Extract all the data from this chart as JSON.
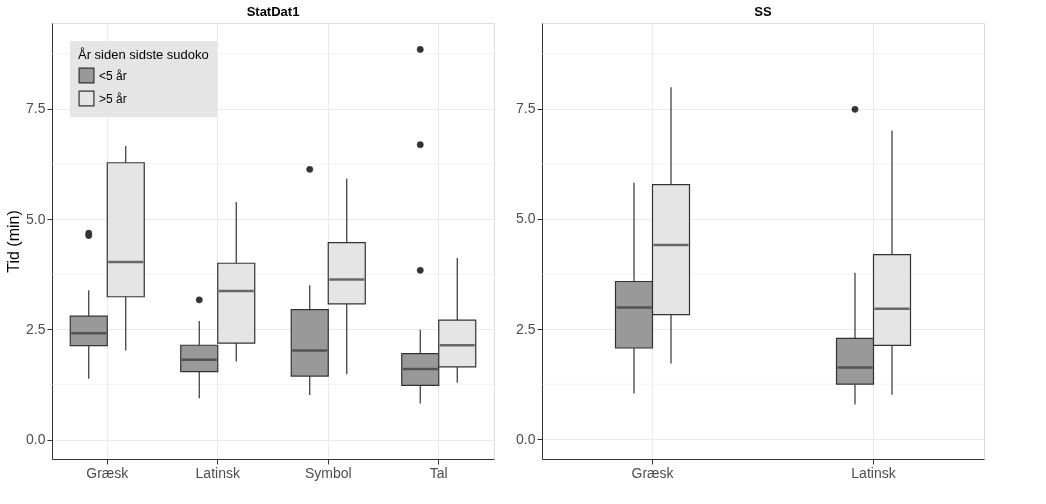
{
  "chart_data": [
    {
      "type": "box",
      "title": "StatDat1",
      "ylabel": "Tid (min)",
      "legend_title": "År siden sidste sudoko",
      "legend": "top left",
      "grid": true,
      "categories": [
        "Græsk",
        "Latinsk",
        "Symbol",
        "Tal"
      ],
      "ylim": [
        -0.44,
        9.45
      ],
      "yticks": [
        {
          "value": 0,
          "label": "0.0"
        },
        {
          "value": 2.5,
          "label": "2.5"
        },
        {
          "value": 5,
          "label": "5.0"
        },
        {
          "value": 7.5,
          "label": "7.5"
        }
      ],
      "series": [
        {
          "name": "<5 år",
          "color": "#999999",
          "boxes": [
            {
              "low": 1.38,
              "q1": 2.13,
              "median": 2.41,
              "q3": 2.8,
              "high": 3.39,
              "outliers": [
                4.63,
                4.68
              ]
            },
            {
              "low": 0.94,
              "q1": 1.54,
              "median": 1.81,
              "q3": 2.14,
              "high": 2.69,
              "outliers": [
                3.17
              ]
            },
            {
              "low": 1.01,
              "q1": 1.44,
              "median": 2.02,
              "q3": 2.95,
              "high": 3.5,
              "outliers": [
                6.13
              ]
            },
            {
              "low": 0.82,
              "q1": 1.23,
              "median": 1.6,
              "q3": 1.95,
              "high": 2.49,
              "outliers": [
                3.84,
                6.69,
                8.85
              ]
            }
          ]
        },
        {
          "name": ">5 år",
          "color": "#e5e5e5",
          "boxes": [
            {
              "low": 2.02,
              "q1": 3.24,
              "median": 4.03,
              "q3": 6.28,
              "high": 6.66
            },
            {
              "low": 1.77,
              "q1": 2.19,
              "median": 3.37,
              "q3": 4.0,
              "high": 5.39
            },
            {
              "low": 1.48,
              "q1": 3.08,
              "median": 3.63,
              "q3": 4.47,
              "high": 5.92
            },
            {
              "low": 1.29,
              "q1": 1.65,
              "median": 2.14,
              "q3": 2.71,
              "high": 4.12
            }
          ]
        }
      ]
    },
    {
      "type": "box",
      "title": "SS",
      "grid": true,
      "categories": [
        "Græsk",
        "Latinsk"
      ],
      "ylim": [
        -0.45,
        9.45
      ],
      "yticks": [
        {
          "value": 0,
          "label": "0.0"
        },
        {
          "value": 2.5,
          "label": "2.5"
        },
        {
          "value": 5,
          "label": "5.0"
        },
        {
          "value": 7.5,
          "label": "7.5"
        }
      ],
      "series": [
        {
          "name": "<5 år",
          "color": "#999999",
          "boxes": [
            {
              "low": 1.04,
              "q1": 2.07,
              "median": 2.99,
              "q3": 3.58,
              "high": 5.82
            },
            {
              "low": 0.79,
              "q1": 1.25,
              "median": 1.63,
              "q3": 2.29,
              "high": 3.78,
              "outliers": [
                7.49
              ]
            }
          ]
        },
        {
          "name": ">5 år",
          "color": "#e5e5e5",
          "boxes": [
            {
              "low": 1.72,
              "q1": 2.83,
              "median": 4.41,
              "q3": 5.78,
              "high": 7.99
            },
            {
              "low": 1.01,
              "q1": 2.13,
              "median": 2.96,
              "q3": 4.19,
              "high": 7.01
            }
          ]
        }
      ]
    }
  ]
}
